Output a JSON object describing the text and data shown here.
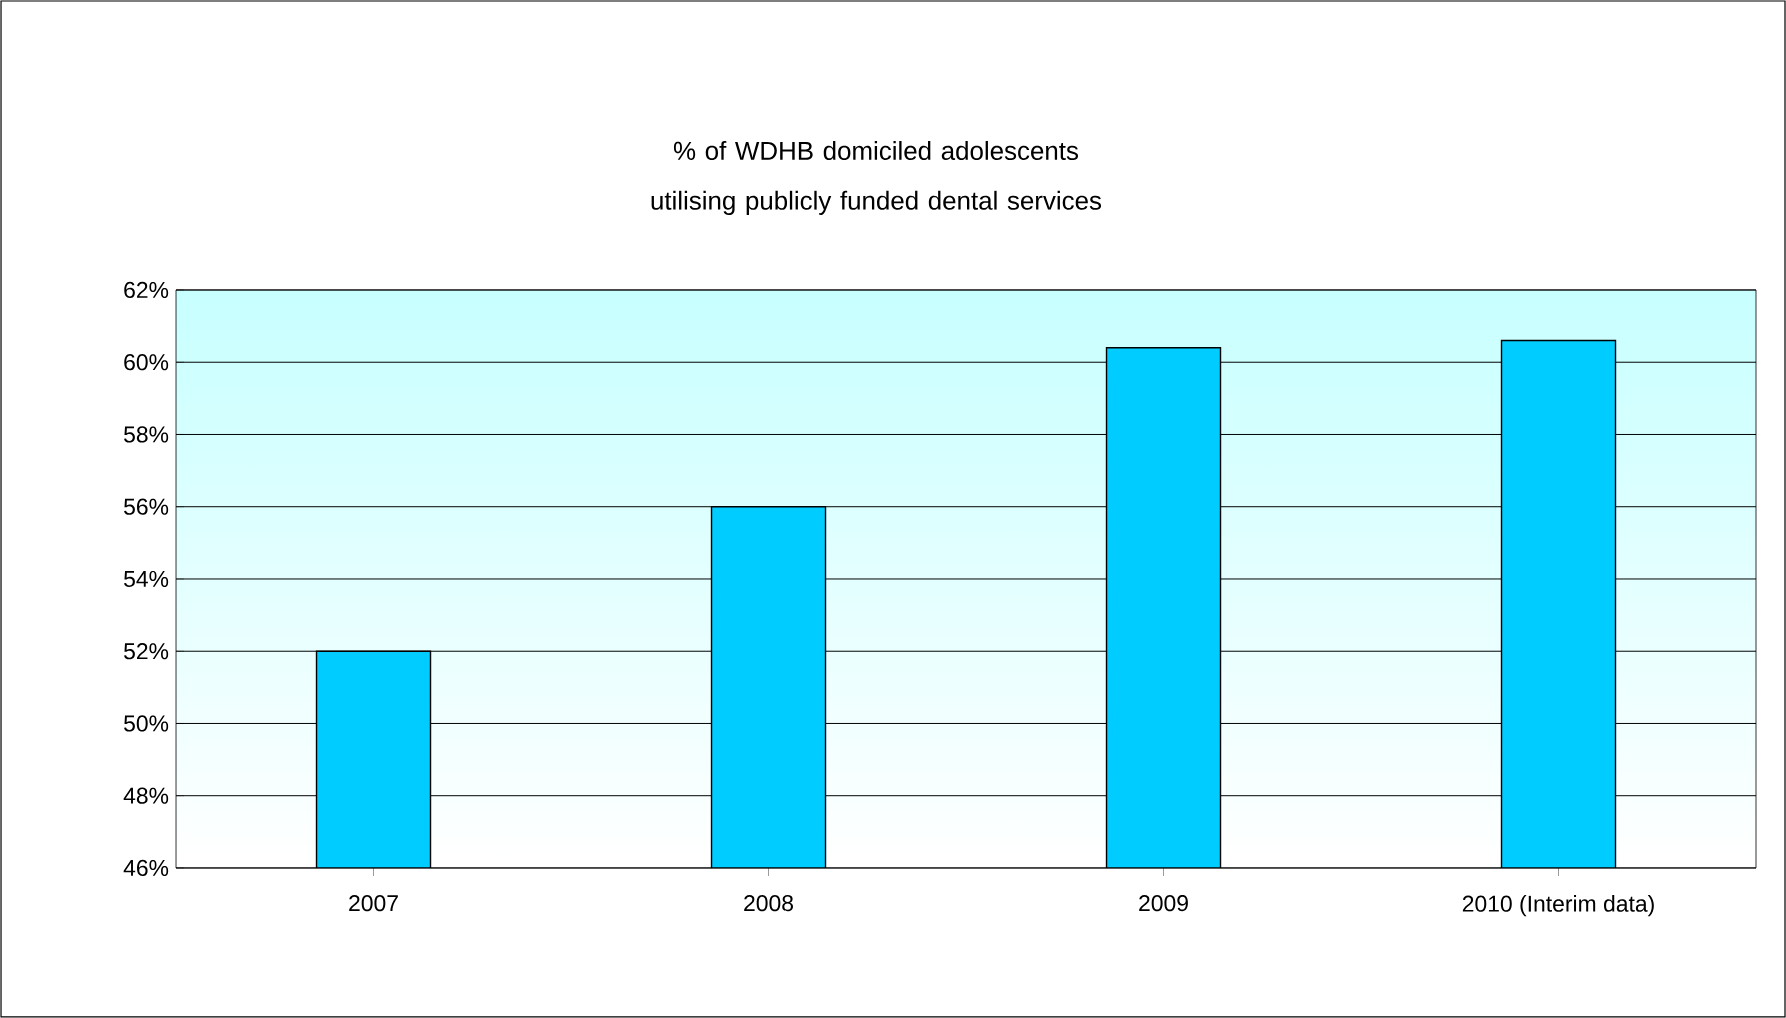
{
  "chart_data": {
    "type": "bar",
    "title": "% of WDHB domiciled adolescents utilising publicly funded dental services",
    "categories": [
      "2007",
      "2008",
      "2009",
      "2010 (Interim data)"
    ],
    "values": [
      52.0,
      56.0,
      60.4,
      60.6
    ],
    "color": "#00ccff",
    "ylim": [
      46,
      62
    ],
    "yticks": [
      {
        "value": 46,
        "label": "46%"
      },
      {
        "value": 48,
        "label": "48%"
      },
      {
        "value": 50,
        "label": "50%"
      },
      {
        "value": 52,
        "label": "52%"
      },
      {
        "value": 54,
        "label": "54%"
      },
      {
        "value": 56,
        "label": "56%"
      },
      {
        "value": 58,
        "label": "58%"
      },
      {
        "value": 60,
        "label": "60%"
      },
      {
        "value": 62,
        "label": "62%"
      }
    ],
    "grid": "y"
  }
}
